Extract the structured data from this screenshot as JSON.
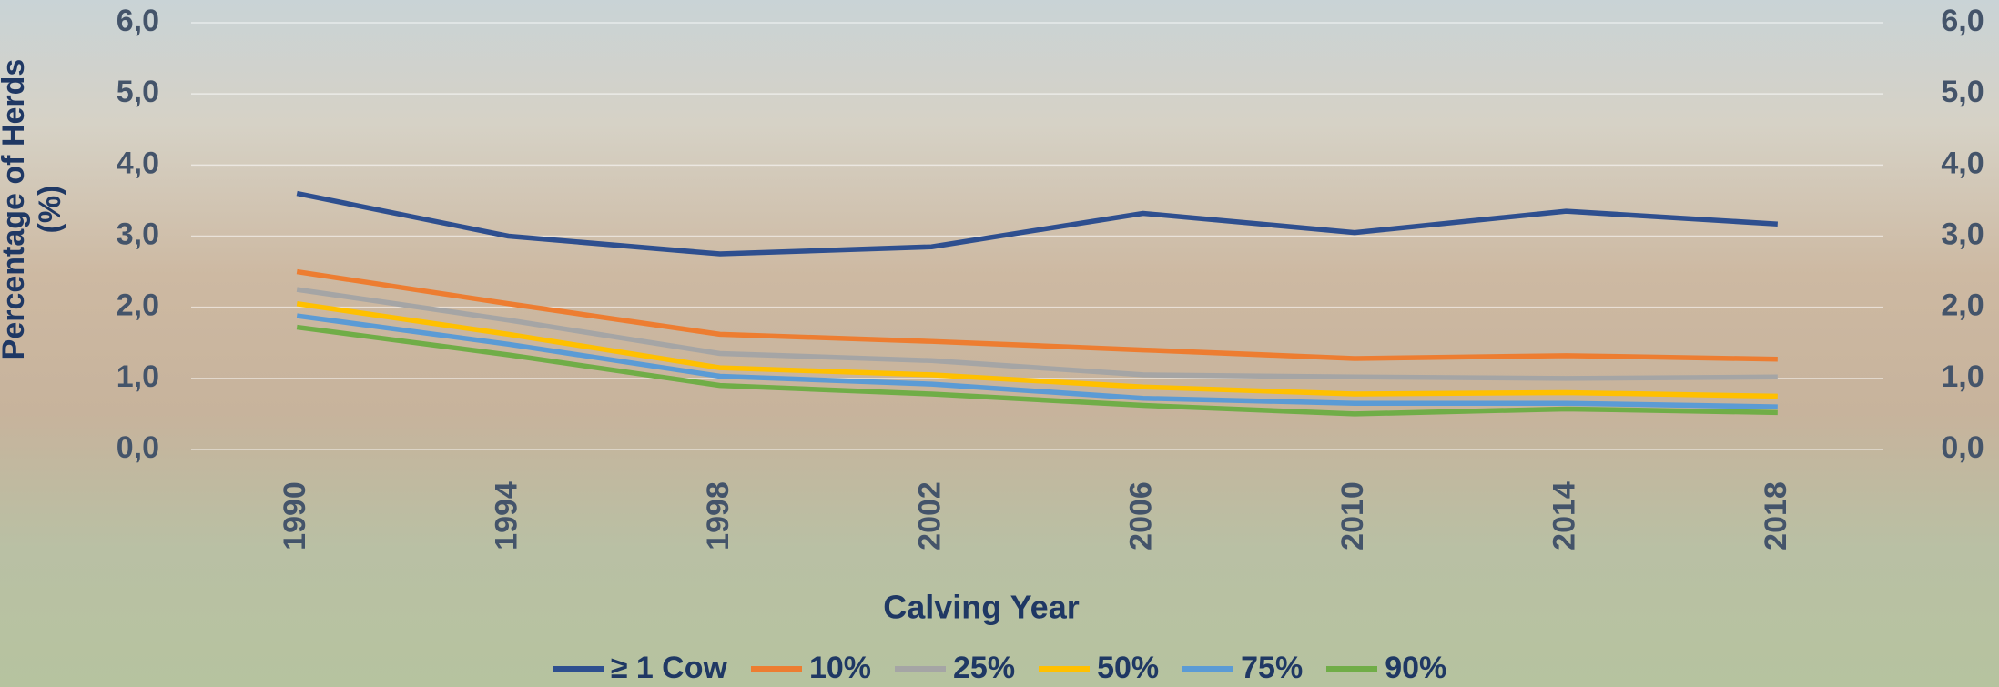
{
  "chart_data": {
    "type": "line",
    "x_label": "Calving Year",
    "y_label": "Percentage of Herds (%)",
    "categories": [
      "1990",
      "1994",
      "1998",
      "2002",
      "2006",
      "2010",
      "2014",
      "2018"
    ],
    "series": [
      {
        "name": "≥ 1 Cow",
        "color": "#2e4f8f",
        "values": [
          3.6,
          3.0,
          2.75,
          2.85,
          3.32,
          3.05,
          3.35,
          3.17
        ]
      },
      {
        "name": "10%",
        "color": "#ed7d31",
        "values": [
          2.5,
          2.05,
          1.62,
          1.52,
          1.4,
          1.28,
          1.32,
          1.27
        ]
      },
      {
        "name": "25%",
        "color": "#a5a5a5",
        "values": [
          2.25,
          1.82,
          1.35,
          1.25,
          1.05,
          1.02,
          1.0,
          1.02
        ]
      },
      {
        "name": "50%",
        "color": "#ffc000",
        "values": [
          2.05,
          1.62,
          1.15,
          1.05,
          0.88,
          0.78,
          0.8,
          0.75
        ]
      },
      {
        "name": "75%",
        "color": "#5b9bd5",
        "values": [
          1.88,
          1.48,
          1.03,
          0.92,
          0.72,
          0.65,
          0.65,
          0.6
        ]
      },
      {
        "name": "90%",
        "color": "#70ad47",
        "values": [
          1.72,
          1.33,
          0.9,
          0.78,
          0.62,
          0.5,
          0.57,
          0.52
        ]
      }
    ],
    "ylim": [
      0,
      6
    ],
    "yticks": [
      {
        "value": 0,
        "label": "0,0"
      },
      {
        "value": 1,
        "label": "1,0"
      },
      {
        "value": 2,
        "label": "2,0"
      },
      {
        "value": 3,
        "label": "3,0"
      },
      {
        "value": 4,
        "label": "4,0"
      },
      {
        "value": 5,
        "label": "5,0"
      },
      {
        "value": 6,
        "label": "6,0"
      }
    ],
    "y2lim": [
      0,
      6
    ],
    "y2ticks": [
      {
        "value": 0,
        "label": "0,0"
      },
      {
        "value": 1,
        "label": "1,0"
      },
      {
        "value": 2,
        "label": "2,0"
      },
      {
        "value": 3,
        "label": "3,0"
      },
      {
        "value": 4,
        "label": "4,0"
      },
      {
        "value": 5,
        "label": "5,0"
      },
      {
        "value": 6,
        "label": "6,0"
      }
    ],
    "grid": true,
    "legend": "bottom"
  }
}
